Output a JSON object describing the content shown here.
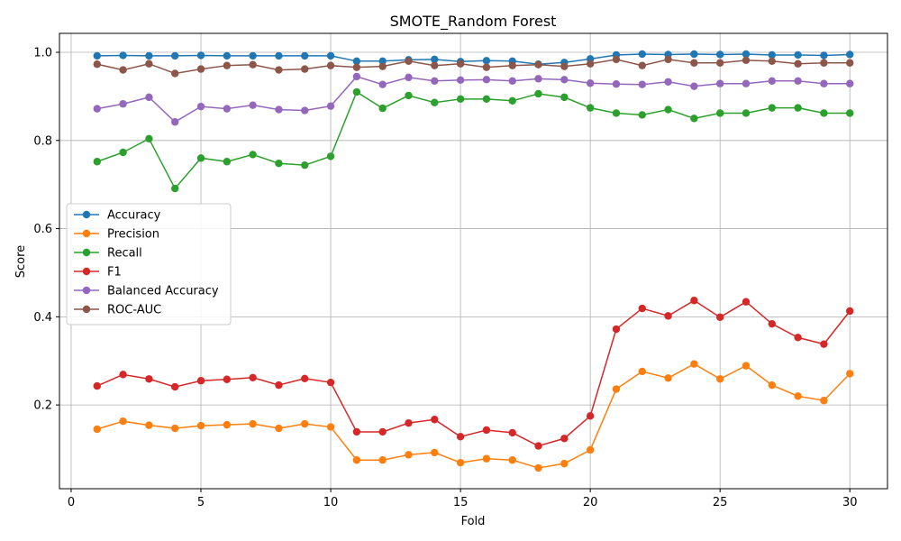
{
  "chart_data": {
    "type": "line",
    "title": "SMOTE_Random Forest",
    "xlabel": "Fold",
    "ylabel": "Score",
    "xlim": [
      -0.45,
      31.45
    ],
    "ylim": [
      0.01,
      1.043
    ],
    "xticks": [
      0,
      5,
      10,
      15,
      20,
      25,
      30
    ],
    "yticks": [
      0.2,
      0.4,
      0.6,
      0.8,
      1.0
    ],
    "ytick_labels": [
      "0.2",
      "0.4",
      "0.6",
      "0.8",
      "1.0"
    ],
    "grid": true,
    "legend_position": "center-left",
    "x": [
      1,
      2,
      3,
      4,
      5,
      6,
      7,
      8,
      9,
      10,
      11,
      12,
      13,
      14,
      15,
      16,
      17,
      18,
      19,
      20,
      21,
      22,
      23,
      24,
      25,
      26,
      27,
      28,
      29,
      30
    ],
    "series": [
      {
        "name": "Accuracy",
        "color": "#1f77b4",
        "values": [
          0.992,
          0.993,
          0.992,
          0.992,
          0.993,
          0.992,
          0.992,
          0.992,
          0.992,
          0.992,
          0.98,
          0.98,
          0.983,
          0.984,
          0.979,
          0.981,
          0.98,
          0.973,
          0.977,
          0.985,
          0.994,
          0.996,
          0.995,
          0.996,
          0.995,
          0.996,
          0.994,
          0.994,
          0.993,
          0.995
        ]
      },
      {
        "name": "Precision",
        "color": "#ff7f0e",
        "values": [
          0.145,
          0.163,
          0.154,
          0.147,
          0.153,
          0.155,
          0.157,
          0.147,
          0.157,
          0.15,
          0.075,
          0.075,
          0.087,
          0.092,
          0.069,
          0.078,
          0.075,
          0.057,
          0.067,
          0.098,
          0.236,
          0.276,
          0.261,
          0.293,
          0.259,
          0.289,
          0.245,
          0.22,
          0.21,
          0.271
        ]
      },
      {
        "name": "Recall",
        "color": "#2ca02c",
        "values": [
          0.752,
          0.773,
          0.804,
          0.691,
          0.76,
          0.752,
          0.768,
          0.748,
          0.744,
          0.764,
          0.91,
          0.873,
          0.902,
          0.886,
          0.894,
          0.894,
          0.89,
          0.906,
          0.898,
          0.874,
          0.862,
          0.858,
          0.87,
          0.85,
          0.862,
          0.862,
          0.874,
          0.874,
          0.862,
          0.862
        ]
      },
      {
        "name": "F1",
        "color": "#d62728",
        "values": [
          0.243,
          0.269,
          0.259,
          0.241,
          0.255,
          0.258,
          0.262,
          0.245,
          0.26,
          0.251,
          0.139,
          0.139,
          0.159,
          0.167,
          0.128,
          0.143,
          0.137,
          0.107,
          0.124,
          0.175,
          0.372,
          0.419,
          0.402,
          0.437,
          0.399,
          0.434,
          0.384,
          0.353,
          0.338,
          0.413
        ]
      },
      {
        "name": "Balanced Accuracy",
        "color": "#9467bd",
        "values": [
          0.872,
          0.883,
          0.898,
          0.842,
          0.877,
          0.872,
          0.88,
          0.87,
          0.868,
          0.878,
          0.945,
          0.927,
          0.943,
          0.935,
          0.937,
          0.938,
          0.935,
          0.94,
          0.938,
          0.93,
          0.928,
          0.927,
          0.933,
          0.923,
          0.929,
          0.929,
          0.935,
          0.935,
          0.929,
          0.929
        ]
      },
      {
        "name": "ROC-AUC",
        "color": "#8c564b",
        "values": [
          0.973,
          0.96,
          0.974,
          0.952,
          0.962,
          0.97,
          0.972,
          0.96,
          0.962,
          0.97,
          0.966,
          0.968,
          0.98,
          0.97,
          0.974,
          0.966,
          0.97,
          0.972,
          0.968,
          0.974,
          0.984,
          0.97,
          0.984,
          0.976,
          0.976,
          0.982,
          0.98,
          0.974,
          0.976,
          0.976
        ]
      }
    ]
  }
}
